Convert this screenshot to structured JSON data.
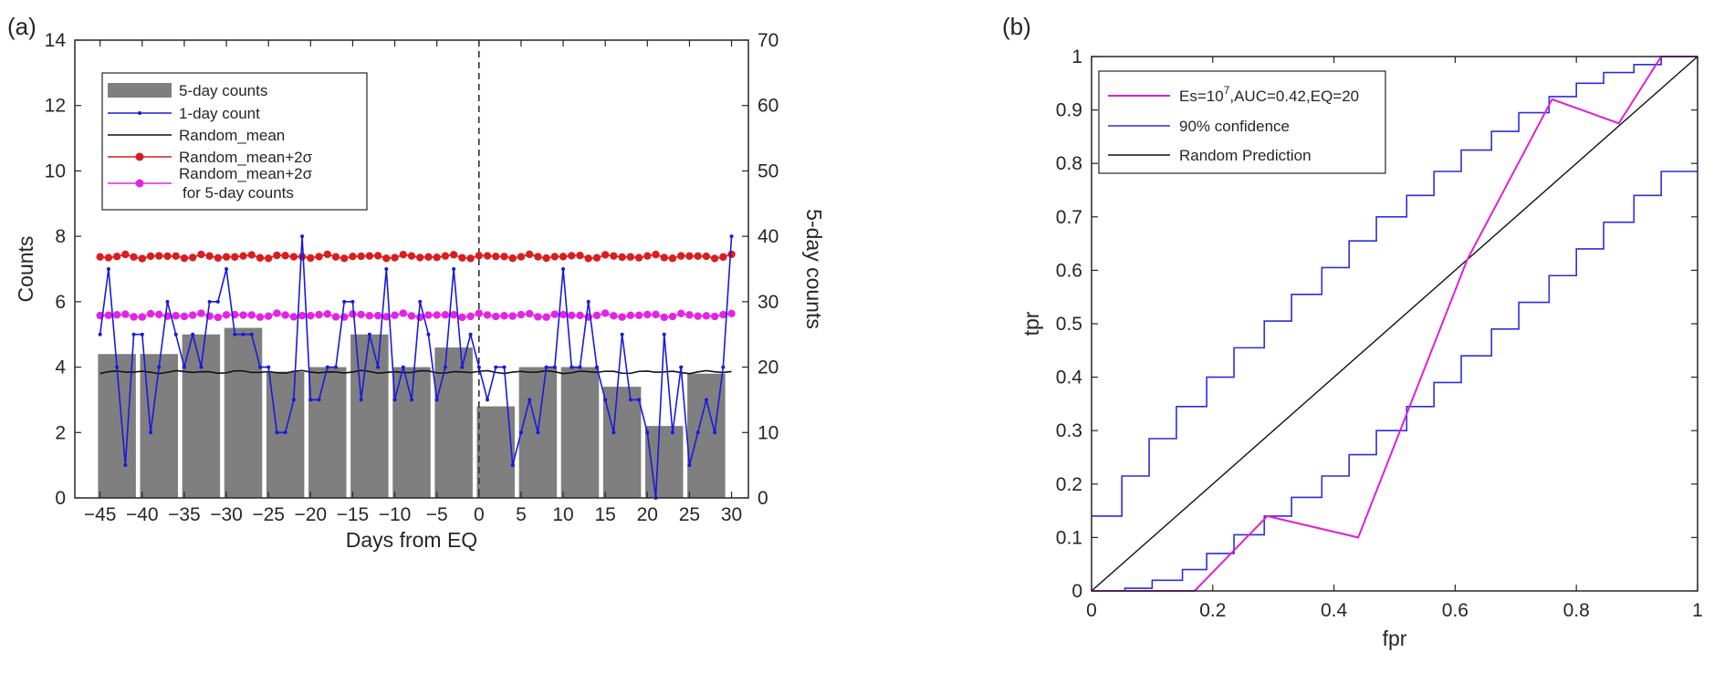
{
  "chart_data": [
    {
      "panel": "(a)",
      "type": "bar+line",
      "xlabel": "Days from EQ",
      "ylabel": "Counts",
      "ylabel_right": "5-day counts",
      "xlim": [
        -48,
        32
      ],
      "ylim": [
        0,
        14
      ],
      "ylim_right": [
        0,
        70
      ],
      "xticks": [
        -45,
        -40,
        -35,
        -30,
        -25,
        -20,
        -15,
        -10,
        -5,
        0,
        5,
        10,
        15,
        20,
        25,
        30
      ],
      "yticks": [
        0,
        2,
        4,
        6,
        8,
        10,
        12,
        14
      ],
      "yticks_right": [
        0,
        10,
        20,
        30,
        40,
        50,
        60,
        70
      ],
      "eq_line_x": 0,
      "legend": {
        "placement": "top-left",
        "entries": [
          "5-day counts",
          "1-day count",
          "Random_mean",
          "Random_mean+2σ",
          "Random_mean+2σ",
          "for 5-day counts"
        ]
      },
      "bars_5day": {
        "name": "5-day counts",
        "color": "#7f7f7f",
        "centers": [
          -43,
          -38,
          -33,
          -28,
          -23,
          -18,
          -13,
          -8,
          -3,
          2,
          7,
          12,
          17,
          22,
          27
        ],
        "values": [
          22,
          22,
          25,
          26,
          19.3,
          20,
          25,
          20,
          23,
          14,
          20,
          20,
          17,
          11,
          19
        ]
      },
      "series": [
        {
          "name": "1-day count",
          "color": "#1a1adb",
          "x": [
            -45,
            -44,
            -43,
            -42,
            -41,
            -40,
            -39,
            -38,
            -37,
            -36,
            -35,
            -34,
            -33,
            -32,
            -31,
            -30,
            -29,
            -28,
            -27,
            -26,
            -25,
            -24,
            -23,
            -22,
            -21,
            -20,
            -19,
            -18,
            -17,
            -16,
            -15,
            -14,
            -13,
            -12,
            -11,
            -10,
            -9,
            -8,
            -7,
            -6,
            -5,
            -4,
            -3,
            -2,
            -1,
            0,
            1,
            2,
            3,
            4,
            5,
            6,
            7,
            8,
            9,
            10,
            11,
            12,
            13,
            14,
            15,
            16,
            17,
            18,
            19,
            20,
            21,
            22,
            23,
            24,
            25,
            26,
            27,
            28,
            29,
            30
          ],
          "values": [
            5,
            7,
            4,
            1,
            5,
            5,
            2,
            4,
            6,
            5,
            4,
            5,
            4,
            6,
            6,
            7,
            5,
            5,
            5,
            4,
            4,
            2,
            2,
            3,
            8,
            3,
            3,
            4,
            4,
            6,
            6,
            3,
            5,
            4,
            7,
            3,
            4,
            3,
            6,
            5,
            3,
            4,
            7,
            4,
            5,
            4,
            3,
            4,
            4,
            1,
            2,
            3,
            2,
            4,
            4,
            7,
            4,
            4,
            6,
            4,
            3,
            2,
            5,
            3,
            3,
            2,
            0,
            5,
            2,
            4,
            1,
            2,
            3,
            2,
            4,
            8
          ]
        },
        {
          "name": "Random_mean",
          "color": "#111111",
          "value": 3.85
        },
        {
          "name": "Random_mean+2σ",
          "color": "#d91e1e",
          "value": 7.38
        },
        {
          "name": "Random_mean+2σ for 5-day counts",
          "color": "#e523e5",
          "value": 5.58
        }
      ]
    },
    {
      "panel": "(b)",
      "type": "line",
      "xlabel": "fpr",
      "ylabel": "tpr",
      "xlim": [
        0,
        1
      ],
      "ylim": [
        0,
        1
      ],
      "xticks": [
        0,
        0.2,
        0.4,
        0.6,
        0.8,
        1
      ],
      "yticks": [
        0,
        0.1,
        0.2,
        0.3,
        0.4,
        0.5,
        0.6,
        0.7,
        0.8,
        0.9,
        1
      ],
      "xtick_labels": [
        "0",
        "0.2",
        "0.4",
        "0.6",
        "0.8",
        "1"
      ],
      "ytick_labels": [
        "0",
        "0.1",
        "0.2",
        "0.3",
        "0.4",
        "0.5",
        "0.6",
        "0.7",
        "0.8",
        "0.9",
        "1"
      ],
      "legend": {
        "placement": "top-left",
        "entries": [
          "Es=10",
          "7",
          ",AUC=0.42,EQ=20",
          "90% confidence",
          "Random Prediction"
        ]
      },
      "series": [
        {
          "name": "Es=10^7,AUC=0.42,EQ=20",
          "color": "#e01fd6",
          "x": [
            0,
            0.17,
            0.29,
            0.44,
            0.62,
            0.76,
            0.87,
            0.94,
            1
          ],
          "y": [
            0,
            0,
            0.14,
            0.1,
            0.62,
            0.92,
            0.875,
            1,
            1
          ]
        },
        {
          "name": "90% confidence upper",
          "color": "#2d2de0",
          "x": [
            0,
            0.05,
            0.05,
            0.095,
            0.095,
            0.14,
            0.14,
            0.19,
            0.19,
            0.235,
            0.235,
            0.285,
            0.285,
            0.33,
            0.33,
            0.38,
            0.38,
            0.425,
            0.425,
            0.47,
            0.47,
            0.52,
            0.52,
            0.565,
            0.565,
            0.61,
            0.61,
            0.66,
            0.66,
            0.705,
            0.705,
            0.755,
            0.755,
            0.8,
            0.8,
            0.845,
            0.845,
            0.895,
            0.895,
            0.94,
            0.94,
            1
          ],
          "y": [
            0.14,
            0.14,
            0.215,
            0.215,
            0.285,
            0.285,
            0.345,
            0.345,
            0.4,
            0.4,
            0.455,
            0.455,
            0.505,
            0.505,
            0.555,
            0.555,
            0.605,
            0.605,
            0.655,
            0.655,
            0.7,
            0.7,
            0.74,
            0.74,
            0.785,
            0.785,
            0.825,
            0.825,
            0.86,
            0.86,
            0.895,
            0.895,
            0.925,
            0.925,
            0.95,
            0.95,
            0.97,
            0.97,
            0.985,
            0.985,
            1,
            1
          ]
        },
        {
          "name": "90% confidence lower",
          "color": "#2d2de0",
          "x": [
            0,
            0.055,
            0.055,
            0.1,
            0.1,
            0.15,
            0.15,
            0.19,
            0.19,
            0.235,
            0.235,
            0.285,
            0.285,
            0.33,
            0.33,
            0.38,
            0.38,
            0.425,
            0.425,
            0.47,
            0.47,
            0.52,
            0.52,
            0.565,
            0.565,
            0.61,
            0.61,
            0.66,
            0.66,
            0.705,
            0.705,
            0.755,
            0.755,
            0.8,
            0.8,
            0.845,
            0.845,
            0.895,
            0.895,
            0.94,
            0.94,
            1
          ],
          "y": [
            0,
            0,
            0.005,
            0.005,
            0.02,
            0.02,
            0.04,
            0.04,
            0.07,
            0.07,
            0.105,
            0.105,
            0.14,
            0.14,
            0.175,
            0.175,
            0.215,
            0.215,
            0.255,
            0.255,
            0.3,
            0.3,
            0.345,
            0.345,
            0.39,
            0.39,
            0.44,
            0.44,
            0.49,
            0.49,
            0.54,
            0.54,
            0.59,
            0.59,
            0.64,
            0.64,
            0.69,
            0.69,
            0.74,
            0.74,
            0.785,
            0.785
          ]
        },
        {
          "name": "Random Prediction",
          "color": "#111111",
          "x": [
            0,
            1
          ],
          "y": [
            0,
            1
          ]
        }
      ]
    }
  ]
}
